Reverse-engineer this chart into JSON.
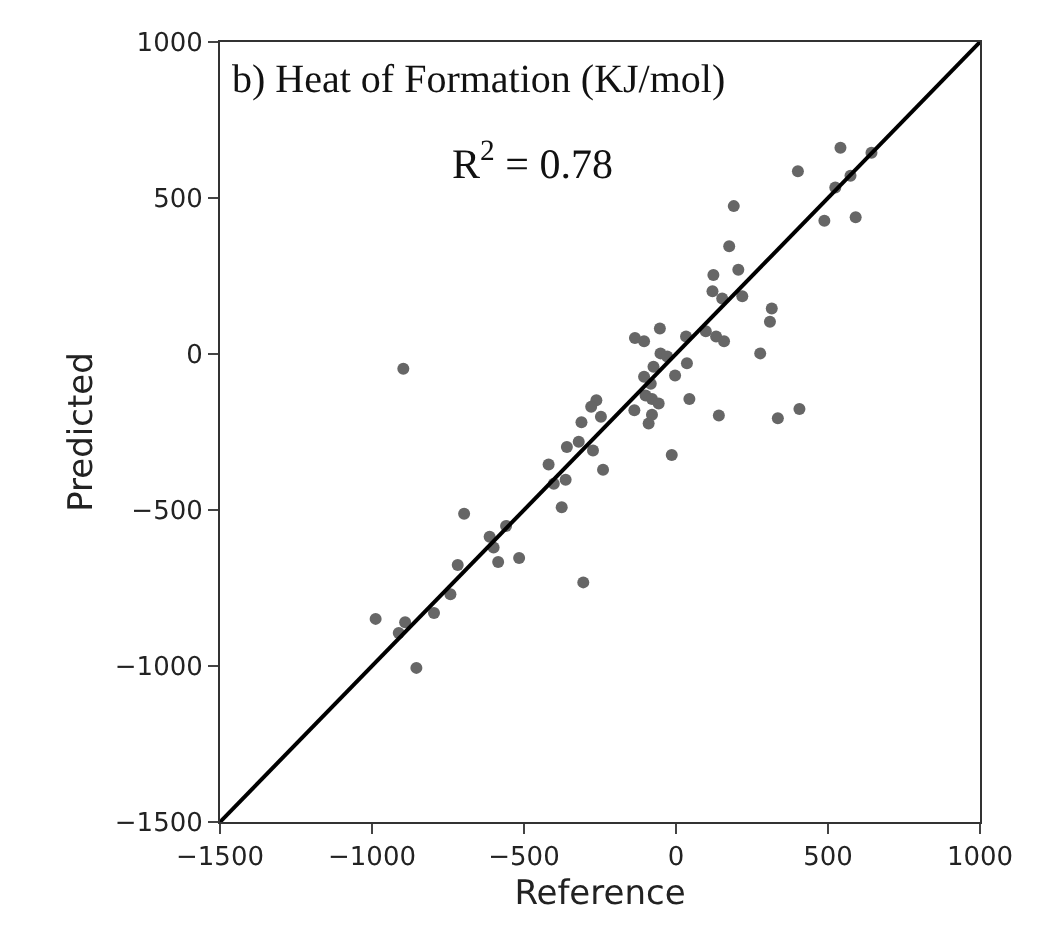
{
  "chart_data": {
    "type": "scatter",
    "title": "b) Heat of Formation (KJ/mol)",
    "xlabel": "Reference",
    "ylabel": "Predicted",
    "annotations": [
      "R$^{2}$ = 0.78"
    ],
    "xlim": [
      -1500,
      1000
    ],
    "ylim": [
      -1500,
      1000
    ],
    "xticks": [
      -1500,
      -1000,
      -500,
      0,
      500,
      1000
    ],
    "yticks": [
      -1500,
      -1000,
      -500,
      0,
      500,
      1000
    ],
    "marker": "circle",
    "series": [
      {
        "color": "#666666",
        "x": [
          541,
          643,
          401,
          574,
          524,
          190,
          488,
          591,
          175,
          123,
          205,
          120,
          152,
          218,
          315,
          309,
          -53,
          -135,
          -105,
          33,
          98,
          132,
          158,
          277,
          -897,
          -51,
          -29,
          -74,
          36,
          -3,
          -105,
          -83,
          -100,
          -79,
          -57,
          44,
          -262,
          -279,
          -247,
          -137,
          -79,
          141,
          335,
          406,
          -311,
          -90,
          -320,
          -273,
          -359,
          -240,
          -14,
          -419,
          -402,
          -363,
          -376,
          -697,
          -559,
          -613,
          -600,
          -718,
          -585,
          -516,
          -305,
          -742,
          -796,
          -988,
          -891,
          -912,
          -854
        ],
        "values": [
          661,
          645,
          586,
          571,
          534,
          474,
          427,
          438,
          345,
          253,
          270,
          201,
          178,
          185,
          146,
          103,
          82,
          51,
          41,
          56,
          73,
          56,
          41,
          2,
          -47,
          2,
          -8,
          -41,
          -30,
          -69,
          -73,
          -95,
          -133,
          -144,
          -159,
          -144,
          -148,
          -169,
          -201,
          -180,
          -195,
          -197,
          -206,
          -176,
          -219,
          -223,
          -281,
          -309,
          -298,
          -371,
          -324,
          -354,
          -416,
          -403,
          -491,
          -512,
          -551,
          -586,
          -620,
          -676,
          -667,
          -654,
          -732,
          -770,
          -830,
          -849,
          -860,
          -894,
          -1006
        ]
      },
      {
        "type": "line",
        "color": "#000000",
        "x": [
          -1500,
          1000
        ],
        "values": [
          -1500,
          1000
        ],
        "line_style": "solid",
        "marker": "none"
      }
    ]
  }
}
